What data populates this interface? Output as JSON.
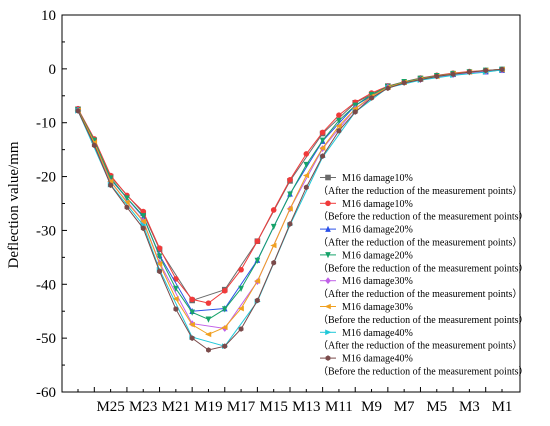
{
  "chart_data": {
    "type": "line",
    "title": "",
    "xlabel": "",
    "ylabel": "Deflection value/mm",
    "ylim": [
      -60,
      10
    ],
    "yticks": [
      10,
      0,
      -10,
      -20,
      -30,
      -40,
      -50,
      -60
    ],
    "x_tick_labels": [
      "M25",
      "M23",
      "M21",
      "M19",
      "M17",
      "M15",
      "M13",
      "M11",
      "M9",
      "M7",
      "M5",
      "M3",
      "M1"
    ],
    "x_positions": [
      "M27",
      "M26",
      "M25",
      "M24",
      "M23",
      "M22",
      "M21",
      "M20",
      "M19",
      "M18",
      "M17",
      "M16",
      "M15",
      "M14",
      "M13",
      "M12",
      "M11",
      "M10",
      "M9",
      "M8",
      "M7",
      "M6",
      "M5",
      "M4",
      "M3",
      "M2",
      "M1"
    ],
    "grid": false,
    "legend_position": "right",
    "colors": {
      "axis": "#000000",
      "gray": "#6b6b6b",
      "red": "#f03a3a",
      "blue": "#2a50e8",
      "green": "#16a36a",
      "violet": "#c060e8",
      "orange": "#f0a020",
      "cyan": "#20c8d8",
      "brown": "#7a4a4a"
    },
    "series": [
      {
        "name": "M16 damage10%",
        "note": "（After the reduction of the measurement points）",
        "color": "#6b6b6b",
        "marker": "square",
        "points": [
          [
            1,
            -7.5
          ],
          [
            3,
            -20.0
          ],
          [
            5,
            -26.8
          ],
          [
            6,
            -33.5
          ],
          [
            8,
            -43.0
          ],
          [
            10,
            -41.0
          ],
          [
            12,
            -32.0
          ],
          [
            14,
            -20.8
          ],
          [
            16,
            -12.0
          ],
          [
            18,
            -6.3
          ],
          [
            20,
            -3.2
          ],
          [
            22,
            -1.8
          ],
          [
            24,
            -1.0
          ],
          [
            26,
            -0.5
          ],
          [
            27,
            -0.2
          ]
        ]
      },
      {
        "name": "M16 damage10%",
        "note": "（Before the reduction of the measurement points）",
        "color": "#f03a3a",
        "marker": "circle",
        "points": [
          [
            1,
            -7.4
          ],
          [
            2,
            -13.0
          ],
          [
            3,
            -19.8
          ],
          [
            4,
            -23.5
          ],
          [
            5,
            -26.5
          ],
          [
            6,
            -33.3
          ],
          [
            7,
            -39.0
          ],
          [
            8,
            -42.8
          ],
          [
            9,
            -43.5
          ],
          [
            10,
            -41.2
          ],
          [
            11,
            -37.3
          ],
          [
            12,
            -32.0
          ],
          [
            13,
            -26.2
          ],
          [
            14,
            -20.6
          ],
          [
            15,
            -15.8
          ],
          [
            16,
            -11.8
          ],
          [
            17,
            -8.6
          ],
          [
            18,
            -6.2
          ],
          [
            19,
            -4.5
          ],
          [
            20,
            -3.2
          ],
          [
            21,
            -2.4
          ],
          [
            22,
            -1.7
          ],
          [
            23,
            -1.2
          ],
          [
            24,
            -0.8
          ],
          [
            25,
            -0.5
          ],
          [
            26,
            -0.3
          ],
          [
            27,
            -0.1
          ]
        ]
      },
      {
        "name": "M16 damage20%",
        "note": "（After the reduction of the measurement points）",
        "color": "#2a50e8",
        "marker": "triangle-up",
        "points": [
          [
            1,
            -7.6
          ],
          [
            3,
            -20.5
          ],
          [
            5,
            -27.5
          ],
          [
            6,
            -34.6
          ],
          [
            8,
            -45.0
          ],
          [
            10,
            -44.5
          ],
          [
            12,
            -35.5
          ],
          [
            14,
            -23.2
          ],
          [
            16,
            -13.4
          ],
          [
            18,
            -6.8
          ],
          [
            20,
            -3.3
          ],
          [
            22,
            -1.9
          ],
          [
            24,
            -1.0
          ],
          [
            26,
            -0.5
          ],
          [
            27,
            -0.2
          ]
        ]
      },
      {
        "name": "M16 damage20%",
        "note": "（Before the reduction of the measurement points）",
        "color": "#16a36a",
        "marker": "triangle-down",
        "points": [
          [
            1,
            -7.6
          ],
          [
            2,
            -13.3
          ],
          [
            3,
            -20.3
          ],
          [
            4,
            -24.0
          ],
          [
            5,
            -27.3
          ],
          [
            6,
            -34.8
          ],
          [
            7,
            -40.8
          ],
          [
            8,
            -45.2
          ],
          [
            9,
            -46.5
          ],
          [
            10,
            -44.6
          ],
          [
            11,
            -40.8
          ],
          [
            12,
            -35.6
          ],
          [
            13,
            -29.3
          ],
          [
            14,
            -23.3
          ],
          [
            15,
            -17.8
          ],
          [
            16,
            -13.3
          ],
          [
            17,
            -9.6
          ],
          [
            18,
            -6.8
          ],
          [
            19,
            -4.8
          ],
          [
            20,
            -3.3
          ],
          [
            21,
            -2.4
          ],
          [
            22,
            -1.8
          ],
          [
            23,
            -1.3
          ],
          [
            24,
            -0.9
          ],
          [
            25,
            -0.6
          ],
          [
            26,
            -0.3
          ],
          [
            27,
            -0.1
          ]
        ]
      },
      {
        "name": "M16 damage30%",
        "note": "（After the reduction of the measurement points）",
        "color": "#c060e8",
        "marker": "diamond",
        "points": [
          [
            1,
            -7.7
          ],
          [
            3,
            -21.0
          ],
          [
            5,
            -28.2
          ],
          [
            6,
            -36.0
          ],
          [
            8,
            -47.3
          ],
          [
            10,
            -48.2
          ],
          [
            12,
            -39.5
          ],
          [
            14,
            -26.0
          ],
          [
            16,
            -14.8
          ],
          [
            18,
            -7.4
          ],
          [
            20,
            -3.4
          ],
          [
            22,
            -2.0
          ],
          [
            24,
            -1.1
          ],
          [
            26,
            -0.5
          ],
          [
            27,
            -0.2
          ]
        ]
      },
      {
        "name": "M16 damage30%",
        "note": "（Before the reduction of the measurement points）",
        "color": "#f0a020",
        "marker": "triangle-left",
        "points": [
          [
            1,
            -7.7
          ],
          [
            2,
            -13.7
          ],
          [
            3,
            -20.9
          ],
          [
            4,
            -24.8
          ],
          [
            5,
            -28.3
          ],
          [
            6,
            -36.2
          ],
          [
            7,
            -42.7
          ],
          [
            8,
            -47.5
          ],
          [
            9,
            -49.3
          ],
          [
            10,
            -48.0
          ],
          [
            11,
            -44.5
          ],
          [
            12,
            -39.4
          ],
          [
            13,
            -32.8
          ],
          [
            14,
            -26.0
          ],
          [
            15,
            -19.8
          ],
          [
            16,
            -14.7
          ],
          [
            17,
            -10.6
          ],
          [
            18,
            -7.4
          ],
          [
            19,
            -5.1
          ],
          [
            20,
            -3.4
          ],
          [
            21,
            -2.5
          ],
          [
            22,
            -1.9
          ],
          [
            23,
            -1.4
          ],
          [
            24,
            -0.9
          ],
          [
            25,
            -0.6
          ],
          [
            26,
            -0.3
          ],
          [
            27,
            -0.1
          ]
        ]
      },
      {
        "name": "M16 damage40%",
        "note": "（After the reduction of the measurement points）",
        "color": "#20c8d8",
        "marker": "triangle-right",
        "points": [
          [
            1,
            -7.8
          ],
          [
            3,
            -21.5
          ],
          [
            5,
            -29.0
          ],
          [
            6,
            -37.3
          ],
          [
            8,
            -49.8
          ],
          [
            10,
            -51.5
          ],
          [
            12,
            -43.2
          ],
          [
            14,
            -29.0
          ],
          [
            16,
            -16.4
          ],
          [
            18,
            -8.0
          ],
          [
            20,
            -3.5
          ],
          [
            22,
            -2.1
          ],
          [
            24,
            -1.2
          ],
          [
            26,
            -0.6
          ],
          [
            27,
            -0.2
          ]
        ]
      },
      {
        "name": "M16 damage40%",
        "note": "（Before the reduction of the measurement points）",
        "color": "#7a4a4a",
        "marker": "hexagon",
        "points": [
          [
            1,
            -7.8
          ],
          [
            2,
            -14.2
          ],
          [
            3,
            -21.6
          ],
          [
            4,
            -25.7
          ],
          [
            5,
            -29.6
          ],
          [
            6,
            -37.6
          ],
          [
            7,
            -44.6
          ],
          [
            8,
            -50.0
          ],
          [
            9,
            -52.2
          ],
          [
            10,
            -51.5
          ],
          [
            11,
            -48.3
          ],
          [
            12,
            -43.0
          ],
          [
            13,
            -36.0
          ],
          [
            14,
            -28.8
          ],
          [
            15,
            -22.0
          ],
          [
            16,
            -16.2
          ],
          [
            17,
            -11.5
          ],
          [
            18,
            -8.0
          ],
          [
            19,
            -5.4
          ],
          [
            20,
            -3.6
          ],
          [
            21,
            -2.6
          ],
          [
            22,
            -2.0
          ],
          [
            23,
            -1.4
          ],
          [
            24,
            -1.0
          ],
          [
            25,
            -0.6
          ],
          [
            26,
            -0.3
          ],
          [
            27,
            -0.1
          ]
        ]
      }
    ]
  }
}
